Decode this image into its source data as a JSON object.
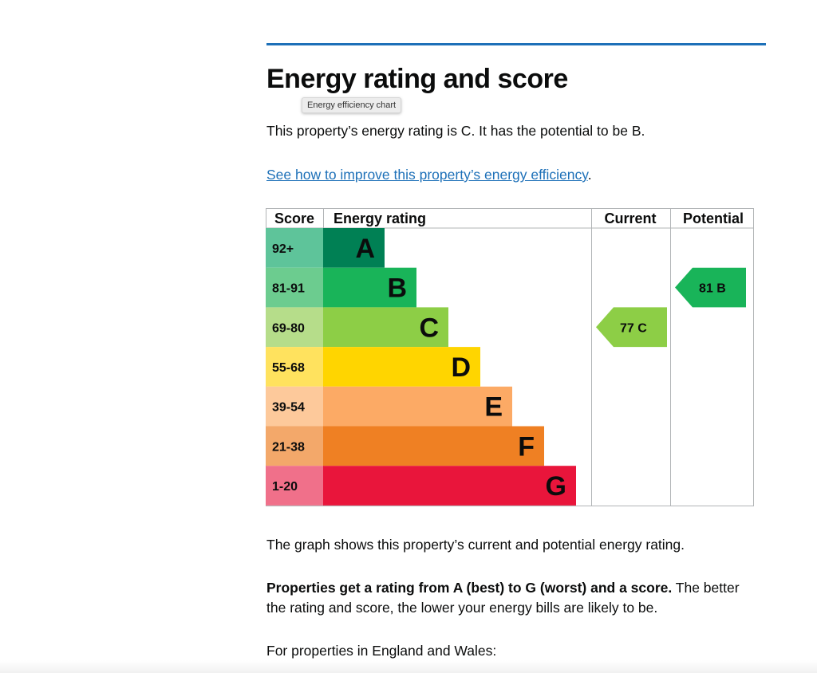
{
  "heading": "Energy rating and score",
  "tooltip": "Energy efficiency chart",
  "intro": "This property’s energy rating is C. It has the potential to be B.",
  "improve_link": "See how to improve this property’s energy efficiency",
  "improve_suffix": ".",
  "chart_data": {
    "type": "bar",
    "columns": [
      "Score",
      "Energy rating",
      "Current",
      "Potential"
    ],
    "bands": [
      {
        "letter": "A",
        "score": "92+",
        "color": "#008054",
        "score_color": "#5ec49a"
      },
      {
        "letter": "B",
        "score": "81-91",
        "color": "#19b459",
        "score_color": "#6ccc8f"
      },
      {
        "letter": "C",
        "score": "69-80",
        "color": "#8dce46",
        "score_color": "#b6dd8a"
      },
      {
        "letter": "D",
        "score": "55-68",
        "color": "#ffd500",
        "score_color": "#ffe25e"
      },
      {
        "letter": "E",
        "score": "39-54",
        "color": "#fcaa65",
        "score_color": "#fdc99b"
      },
      {
        "letter": "F",
        "score": "21-38",
        "color": "#ef8023",
        "score_color": "#f3a86a"
      },
      {
        "letter": "G",
        "score": "1-20",
        "color": "#e9153b",
        "score_color": "#f0708a"
      }
    ],
    "current": {
      "score": 77,
      "letter": "C",
      "label": "77  C"
    },
    "potential": {
      "score": 81,
      "letter": "B",
      "label": "81  B"
    }
  },
  "graph_text": "The graph shows this property’s current and potential energy rating.",
  "rating_bold": "Properties get a rating from A (best) to G (worst) and a score.",
  "rating_rest": " The better the rating and score, the lower your energy bills are likely to be.",
  "england_wales": "For properties in England and Wales:"
}
